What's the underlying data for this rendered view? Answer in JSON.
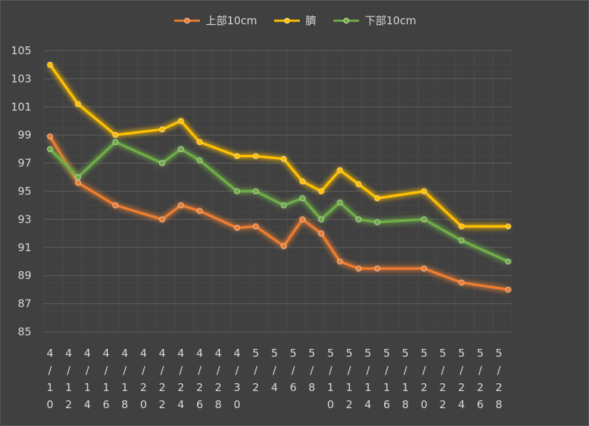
{
  "chart_data": {
    "type": "line",
    "title": "",
    "xlabel": "",
    "ylabel": "",
    "ylim": [
      85,
      105
    ],
    "yticks": [
      "105",
      "103",
      "101",
      "99",
      "97",
      "95",
      "93",
      "91",
      "89",
      "87",
      "85"
    ],
    "legend_position": "top-center",
    "grid": true,
    "categories": [
      "4/10",
      "4/12",
      "4/14",
      "4/16",
      "4/18",
      "4/20",
      "4/22",
      "4/24",
      "4/26",
      "4/28",
      "4/30",
      "5/2",
      "5/4",
      "5/6",
      "5/8",
      "5/10",
      "5/12",
      "5/14",
      "5/16",
      "5/18",
      "5/20",
      "5/22",
      "5/24",
      "5/26",
      "5/28"
    ],
    "x_axis_extra_minor_ticks": 2,
    "series": [
      {
        "name": "上部10cm",
        "color": "#ed7d31",
        "points": [
          {
            "x": 0,
            "y": 98.9
          },
          {
            "x": 1.5,
            "y": 95.6
          },
          {
            "x": 3.5,
            "y": 94.0
          },
          {
            "x": 6,
            "y": 93.0
          },
          {
            "x": 7,
            "y": 94.0
          },
          {
            "x": 8,
            "y": 93.6
          },
          {
            "x": 10,
            "y": 92.4
          },
          {
            "x": 11,
            "y": 92.5
          },
          {
            "x": 12.5,
            "y": 91.1
          },
          {
            "x": 13.5,
            "y": 93.0
          },
          {
            "x": 14.5,
            "y": 92.0
          },
          {
            "x": 15.5,
            "y": 90.0
          },
          {
            "x": 16.5,
            "y": 89.5
          },
          {
            "x": 17.5,
            "y": 89.5
          },
          {
            "x": 20,
            "y": 89.5
          },
          {
            "x": 22,
            "y": 88.5
          },
          {
            "x": 24.5,
            "y": 88.0
          }
        ]
      },
      {
        "name": "臍",
        "color": "#ffc000",
        "points": [
          {
            "x": 0,
            "y": 104.0
          },
          {
            "x": 1.5,
            "y": 101.2
          },
          {
            "x": 3.5,
            "y": 99.0
          },
          {
            "x": 6,
            "y": 99.4
          },
          {
            "x": 7,
            "y": 100.0
          },
          {
            "x": 8,
            "y": 98.5
          },
          {
            "x": 10,
            "y": 97.5
          },
          {
            "x": 11,
            "y": 97.5
          },
          {
            "x": 12.5,
            "y": 97.3
          },
          {
            "x": 13.5,
            "y": 95.7
          },
          {
            "x": 14.5,
            "y": 95.0
          },
          {
            "x": 15.5,
            "y": 96.5
          },
          {
            "x": 16.5,
            "y": 95.5
          },
          {
            "x": 17.5,
            "y": 94.5
          },
          {
            "x": 20,
            "y": 95.0
          },
          {
            "x": 22,
            "y": 92.5
          },
          {
            "x": 24.5,
            "y": 92.5
          }
        ]
      },
      {
        "name": "下部10cm",
        "color": "#70ad47",
        "points": [
          {
            "x": 0,
            "y": 98.0
          },
          {
            "x": 1.5,
            "y": 96.0
          },
          {
            "x": 3.5,
            "y": 98.5
          },
          {
            "x": 6,
            "y": 97.0
          },
          {
            "x": 7,
            "y": 98.0
          },
          {
            "x": 8,
            "y": 97.2
          },
          {
            "x": 10,
            "y": 95.0
          },
          {
            "x": 11,
            "y": 95.0
          },
          {
            "x": 12.5,
            "y": 94.0
          },
          {
            "x": 13.5,
            "y": 94.5
          },
          {
            "x": 14.5,
            "y": 93.0
          },
          {
            "x": 15.5,
            "y": 94.2
          },
          {
            "x": 16.5,
            "y": 93.0
          },
          {
            "x": 17.5,
            "y": 92.8
          },
          {
            "x": 20,
            "y": 93.0
          },
          {
            "x": 22,
            "y": 91.5
          },
          {
            "x": 24.5,
            "y": 90.0
          }
        ]
      }
    ]
  }
}
